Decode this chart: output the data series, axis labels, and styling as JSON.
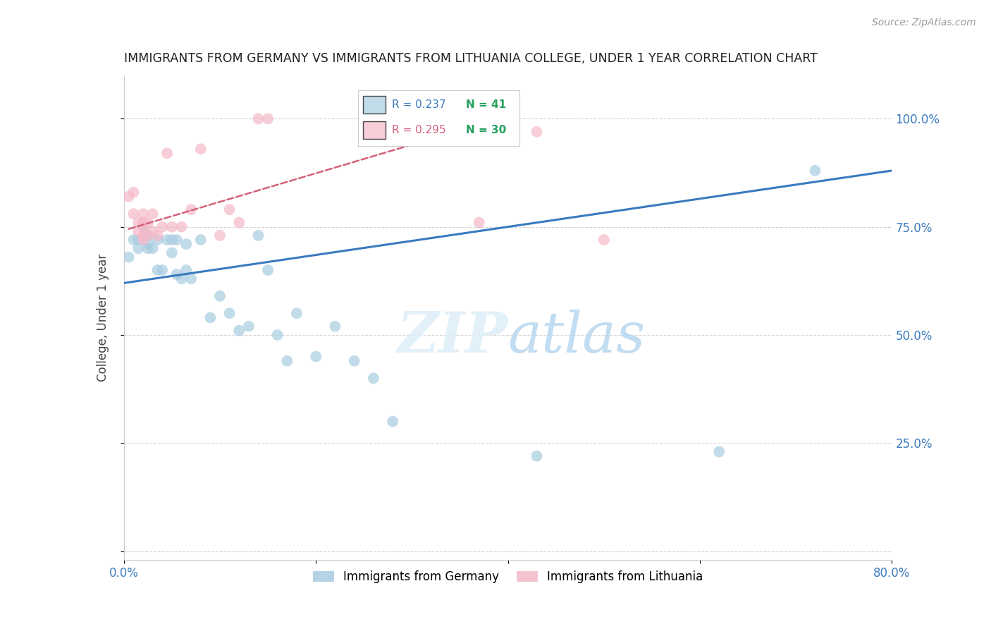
{
  "title": "IMMIGRANTS FROM GERMANY VS IMMIGRANTS FROM LITHUANIA COLLEGE, UNDER 1 YEAR CORRELATION CHART",
  "source": "Source: ZipAtlas.com",
  "ylabel_label": "College, Under 1 year",
  "xlim": [
    0.0,
    0.8
  ],
  "ylim": [
    -0.02,
    1.1
  ],
  "legend_blue_r": "0.237",
  "legend_blue_n": "41",
  "legend_pink_r": "0.295",
  "legend_pink_n": "30",
  "blue_color": "#a8cce0",
  "pink_color": "#f4b8c8",
  "blue_line_color": "#3a7abf",
  "pink_line_color": "#d4607a",
  "grid_color": "#d0d0d0",
  "blue_scatter_x": [
    0.005,
    0.01,
    0.015,
    0.015,
    0.02,
    0.025,
    0.025,
    0.025,
    0.03,
    0.035,
    0.035,
    0.04,
    0.045,
    0.05,
    0.05,
    0.055,
    0.055,
    0.06,
    0.065,
    0.065,
    0.07,
    0.08,
    0.09,
    0.1,
    0.11,
    0.12,
    0.13,
    0.14,
    0.15,
    0.16,
    0.17,
    0.18,
    0.2,
    0.22,
    0.24,
    0.26,
    0.28,
    0.37,
    0.43,
    0.62,
    0.72
  ],
  "blue_scatter_y": [
    0.68,
    0.72,
    0.72,
    0.7,
    0.75,
    0.71,
    0.73,
    0.7,
    0.7,
    0.72,
    0.65,
    0.65,
    0.72,
    0.72,
    0.69,
    0.64,
    0.72,
    0.63,
    0.71,
    0.65,
    0.63,
    0.72,
    0.54,
    0.59,
    0.55,
    0.51,
    0.52,
    0.73,
    0.65,
    0.5,
    0.44,
    0.55,
    0.45,
    0.52,
    0.44,
    0.4,
    0.3,
    0.97,
    0.22,
    0.23,
    0.88
  ],
  "pink_scatter_x": [
    0.005,
    0.01,
    0.01,
    0.015,
    0.015,
    0.02,
    0.02,
    0.02,
    0.02,
    0.02,
    0.025,
    0.025,
    0.03,
    0.03,
    0.035,
    0.04,
    0.045,
    0.05,
    0.06,
    0.07,
    0.08,
    0.1,
    0.11,
    0.12,
    0.14,
    0.15,
    0.37,
    0.38,
    0.43,
    0.5
  ],
  "pink_scatter_y": [
    0.82,
    0.83,
    0.78,
    0.76,
    0.74,
    0.78,
    0.76,
    0.75,
    0.73,
    0.72,
    0.76,
    0.73,
    0.78,
    0.74,
    0.73,
    0.75,
    0.92,
    0.75,
    0.75,
    0.79,
    0.93,
    0.73,
    0.79,
    0.76,
    1.0,
    1.0,
    0.76,
    1.0,
    0.97,
    0.72
  ],
  "blue_trend_x0": 0.0,
  "blue_trend_x1": 0.8,
  "blue_trend_y0": 0.62,
  "blue_trend_y1": 0.88,
  "pink_trend_x0": 0.005,
  "pink_trend_x1": 0.3,
  "pink_trend_y0": 0.745,
  "pink_trend_y1": 0.94
}
